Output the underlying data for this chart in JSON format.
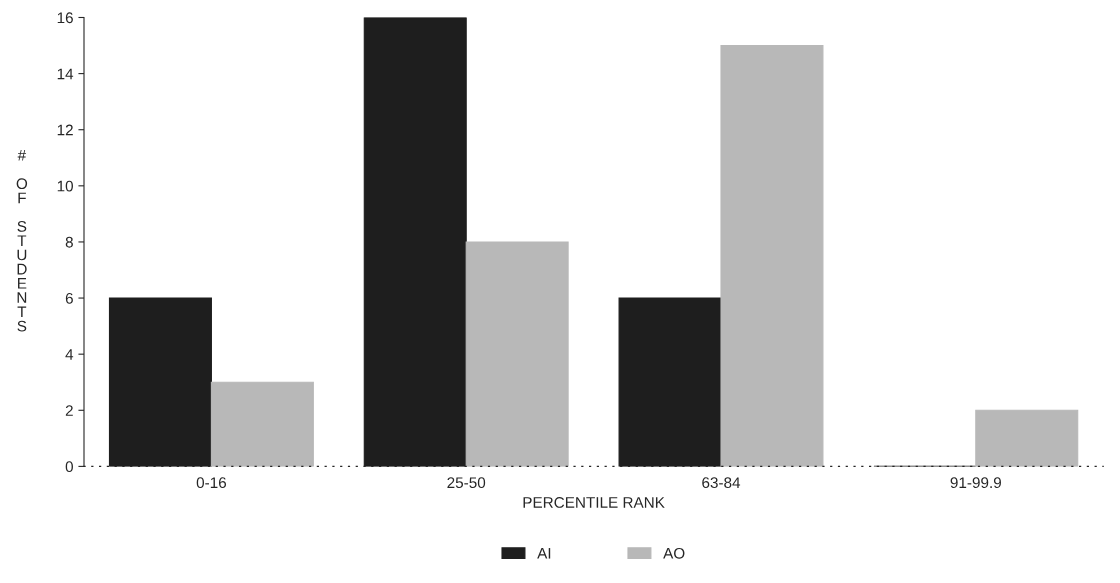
{
  "chart_data": {
    "type": "bar",
    "xlabel": "PERCENTILE RANK",
    "ylabel": "# OF STUDENTS",
    "categories": [
      "0-16",
      "25-50",
      "63-84",
      "91-99.9"
    ],
    "series": [
      {
        "name": "AI",
        "color": "#1e1e1e",
        "values": [
          6,
          16,
          6,
          0
        ]
      },
      {
        "name": "AO",
        "color": "#b8b8b8",
        "values": [
          3,
          8,
          15,
          2
        ]
      }
    ],
    "ylim": [
      0,
      16
    ],
    "yticks": [
      0,
      2,
      4,
      6,
      8,
      10,
      12,
      14,
      16
    ],
    "grid": false,
    "legend": "bottom"
  }
}
